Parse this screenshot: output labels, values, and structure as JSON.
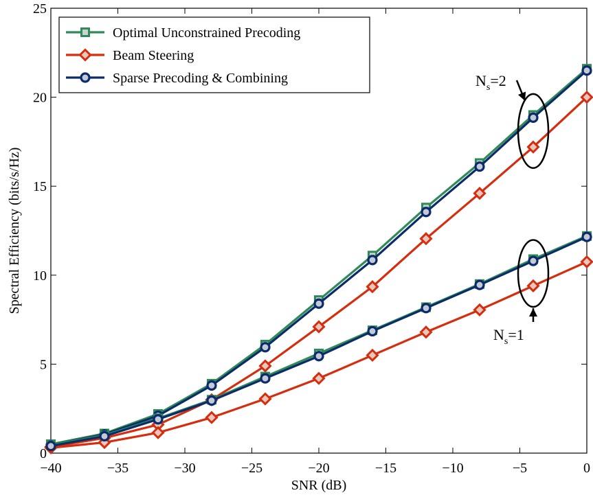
{
  "chart_data": {
    "type": "line",
    "title": "",
    "xlabel": "SNR (dB)",
    "ylabel": "Spectral Efficiency (bits/s/Hz)",
    "xlim": [
      -40,
      0
    ],
    "ylim": [
      0,
      25
    ],
    "xticks": [
      -40,
      -35,
      -30,
      -25,
      -20,
      -15,
      -10,
      -5,
      0
    ],
    "xtick_labels": [
      "−40",
      "−35",
      "−30",
      "−25",
      "−20",
      "−15",
      "−10",
      "−5",
      "0"
    ],
    "yticks": [
      0,
      5,
      10,
      15,
      20,
      25
    ],
    "ytick_labels": [
      "0",
      "5",
      "10",
      "15",
      "20",
      "25"
    ],
    "grid": false,
    "legend_position": "top-left",
    "x": [
      -40,
      -36,
      -32,
      -28,
      -24,
      -20,
      -16,
      -12,
      -8,
      -4,
      0
    ],
    "series": [
      {
        "name": "Optimal Unconstrained Precoding",
        "group": "Ns=2",
        "color": "#2e8b57",
        "marker": "square",
        "values": [
          0.5,
          1.1,
          2.2,
          3.9,
          6.1,
          8.6,
          11.1,
          13.8,
          16.3,
          19.0,
          21.6
        ]
      },
      {
        "name": "Beam Steering",
        "group": "Ns=2",
        "color": "#d62d0e",
        "marker": "diamond",
        "values": [
          0.35,
          0.85,
          1.6,
          3.0,
          4.9,
          7.1,
          9.35,
          12.05,
          14.6,
          17.2,
          20.0
        ]
      },
      {
        "name": "Sparse Precoding & Combining",
        "group": "Ns=2",
        "color": "#0b2b6b",
        "marker": "circle",
        "values": [
          0.45,
          1.05,
          2.1,
          3.8,
          5.95,
          8.4,
          10.85,
          13.55,
          16.1,
          18.85,
          21.5
        ]
      },
      {
        "name": "Optimal Unconstrained Precoding",
        "group": "Ns=1",
        "color": "#2e8b57",
        "marker": "square",
        "values": [
          0.45,
          1.0,
          1.95,
          3.0,
          4.3,
          5.6,
          6.9,
          8.2,
          9.5,
          10.9,
          12.2
        ]
      },
      {
        "name": "Beam Steering",
        "group": "Ns=1",
        "color": "#d62d0e",
        "marker": "diamond",
        "values": [
          0.3,
          0.6,
          1.15,
          2.0,
          3.05,
          4.2,
          5.5,
          6.8,
          8.05,
          9.4,
          10.75
        ]
      },
      {
        "name": "Sparse Precoding & Combining",
        "group": "Ns=1",
        "color": "#0b2b6b",
        "marker": "circle",
        "values": [
          0.4,
          0.95,
          1.9,
          2.95,
          4.2,
          5.45,
          6.85,
          8.15,
          9.45,
          10.8,
          12.15
        ]
      }
    ],
    "legend": [
      {
        "label": "Optimal Unconstrained Precoding",
        "color": "#2e8b57",
        "marker": "square"
      },
      {
        "label": "Beam Steering",
        "color": "#d62d0e",
        "marker": "diamond"
      },
      {
        "label": "Sparse Precoding & Combining",
        "color": "#0b2b6b",
        "marker": "circle"
      }
    ],
    "annotations": [
      {
        "main": "N",
        "sub": "s",
        "rest": "=2",
        "x": -4,
        "y_low": 17.1,
        "y_high": 19.1
      },
      {
        "main": "N",
        "sub": "s",
        "rest": "=1",
        "x": -4,
        "y_low": 9.3,
        "y_high": 10.9
      }
    ]
  }
}
